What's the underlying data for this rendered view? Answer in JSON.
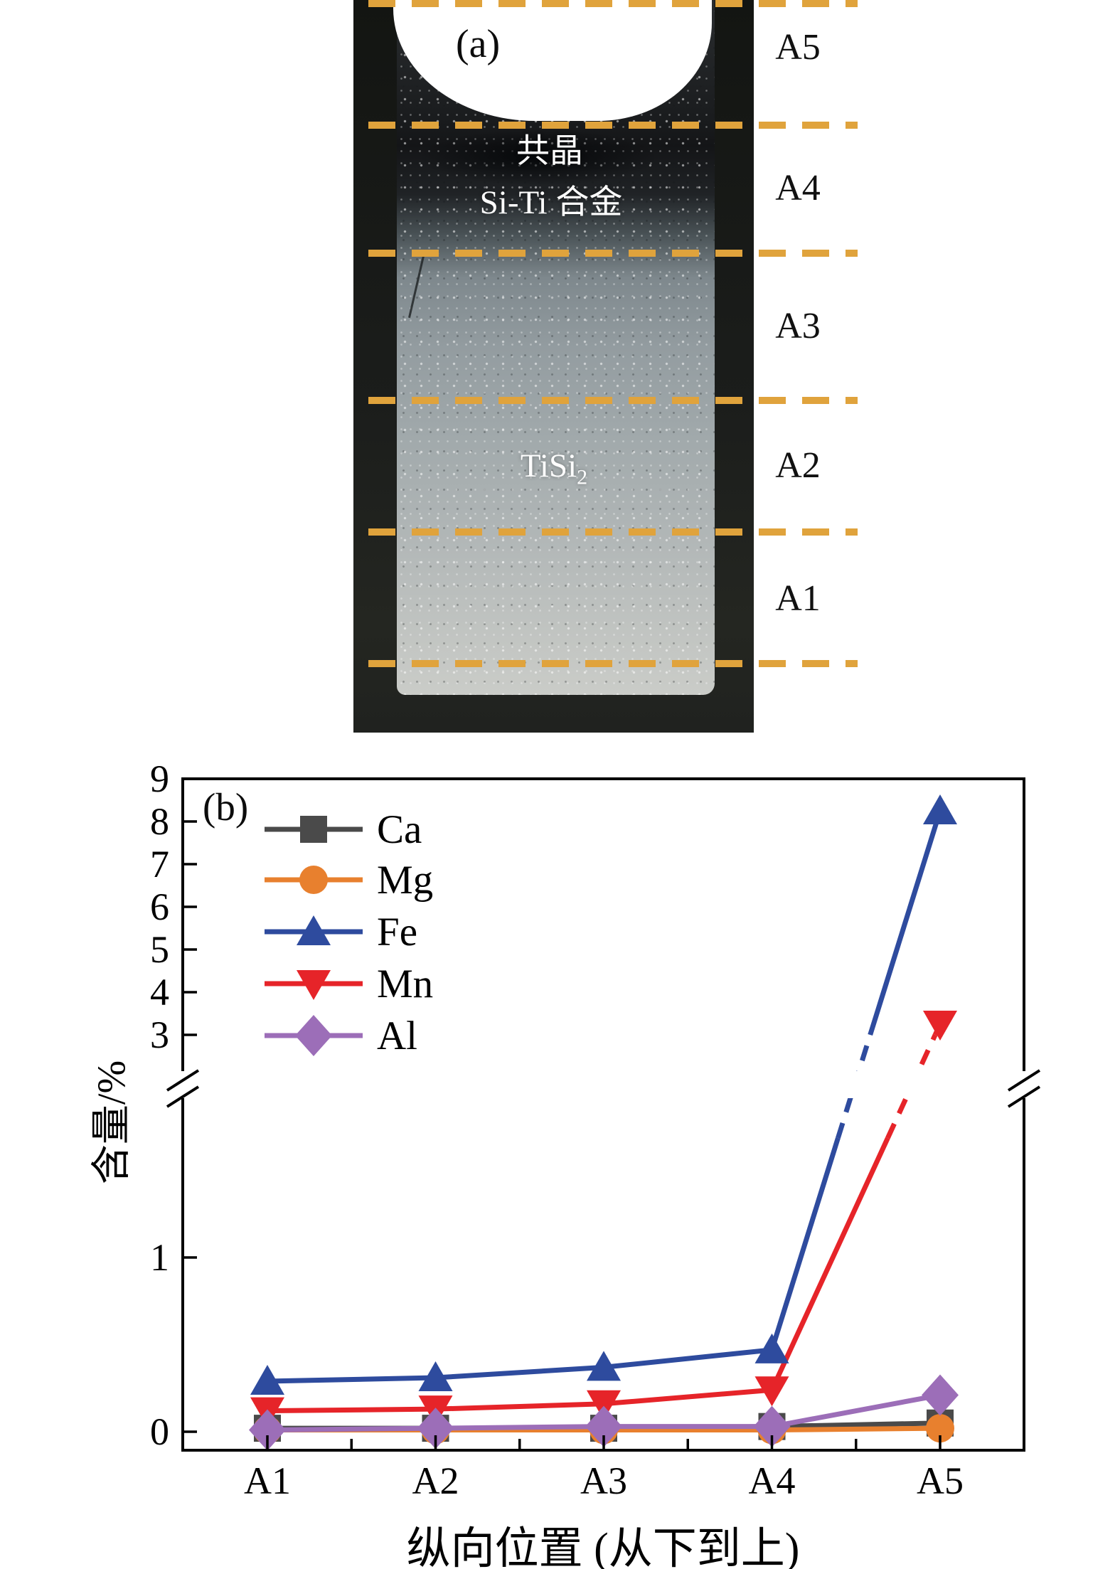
{
  "figure": {
    "panel_a": {
      "label": "(a)",
      "annotations": {
        "eutectic_line1": "共晶",
        "eutectic_line2": "Si-Ti 合金",
        "phase_base": "TiSi",
        "phase_subscript": "2"
      },
      "region_labels": [
        "A5",
        "A4",
        "A3",
        "A2",
        "A1"
      ],
      "divider_color": "#e0a33c"
    },
    "panel_b": {
      "label": "(b)"
    }
  },
  "chart_data": {
    "type": "line",
    "title": "",
    "xlabel": "纵向位置 (从下到上)",
    "ylabel": "含量/%",
    "categories": [
      "A1",
      "A2",
      "A3",
      "A4",
      "A5"
    ],
    "series": [
      {
        "name": "Ca",
        "marker": "square",
        "color": "#4a4a4a",
        "values": [
          0.02,
          0.02,
          0.02,
          0.03,
          0.05
        ]
      },
      {
        "name": "Mg",
        "marker": "circle",
        "color": "#e8802e",
        "values": [
          0.01,
          0.01,
          0.01,
          0.01,
          0.02
        ]
      },
      {
        "name": "Fe",
        "marker": "triangle-up",
        "color": "#2e4b9e",
        "values": [
          0.29,
          0.31,
          0.37,
          0.47,
          8.25
        ]
      },
      {
        "name": "Mn",
        "marker": "triangle-down",
        "color": "#e62429",
        "values": [
          0.12,
          0.13,
          0.16,
          0.24,
          3.25
        ]
      },
      {
        "name": "Al",
        "marker": "diamond",
        "color": "#9c6eb8",
        "values": [
          0.01,
          0.02,
          0.03,
          0.03,
          0.21
        ]
      }
    ],
    "y_axis": {
      "upper_ticks": [
        9,
        8,
        7,
        6,
        5,
        4,
        3
      ],
      "lower_ticks": [
        1,
        0
      ],
      "axis_break": true,
      "break_between": [
        2,
        3
      ]
    },
    "legend_position": "upper-left-inside",
    "grid": false
  }
}
